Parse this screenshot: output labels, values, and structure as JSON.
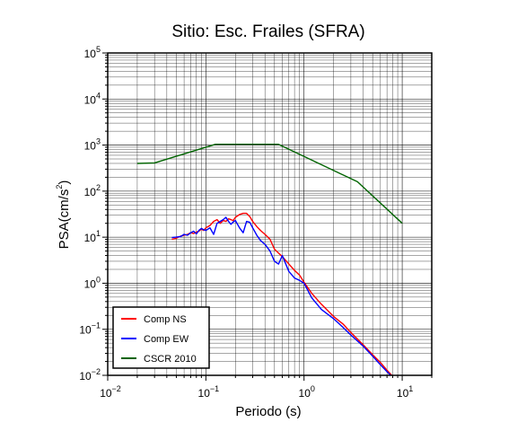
{
  "chart_data": {
    "type": "line",
    "title": "Sitio: Esc. Frailes (SFRA)",
    "xlabel": "Periodo (s)",
    "ylabel_base": "PSA(cm/s",
    "ylabel_sup": "2",
    "ylabel_close": ")",
    "xscale": "log",
    "yscale": "log",
    "xlim": [
      0.01,
      20
    ],
    "ylim": [
      0.01,
      100000
    ],
    "grid": true,
    "legend_position": "bottom-left",
    "x_ticks": [
      {
        "value": 0.01,
        "base": "10",
        "exp": "−2"
      },
      {
        "value": 0.1,
        "base": "10",
        "exp": "−1"
      },
      {
        "value": 1,
        "base": "10",
        "exp": "0"
      },
      {
        "value": 10,
        "base": "10",
        "exp": "1"
      }
    ],
    "y_ticks": [
      {
        "value": 0.01,
        "base": "10",
        "exp": "−2"
      },
      {
        "value": 0.1,
        "base": "10",
        "exp": "−1"
      },
      {
        "value": 1,
        "base": "10",
        "exp": "0"
      },
      {
        "value": 10,
        "base": "10",
        "exp": "1"
      },
      {
        "value": 100,
        "base": "10",
        "exp": "2"
      },
      {
        "value": 1000,
        "base": "10",
        "exp": "3"
      },
      {
        "value": 10000,
        "base": "10",
        "exp": "4"
      },
      {
        "value": 100000,
        "base": "10",
        "exp": "5"
      }
    ],
    "series": [
      {
        "name": "Comp NS",
        "color": "#ff0000",
        "x": [
          0.045,
          0.05,
          0.055,
          0.06,
          0.065,
          0.07,
          0.075,
          0.08,
          0.085,
          0.09,
          0.095,
          0.1,
          0.11,
          0.12,
          0.13,
          0.14,
          0.15,
          0.16,
          0.17,
          0.18,
          0.19,
          0.2,
          0.22,
          0.24,
          0.26,
          0.28,
          0.3,
          0.33,
          0.36,
          0.4,
          0.45,
          0.5,
          0.55,
          0.6,
          0.7,
          0.8,
          0.9,
          1.0,
          1.2,
          1.5,
          2.0,
          2.5,
          3.0,
          4.0,
          5.0,
          6.0,
          7.0,
          8.0
        ],
        "y": [
          9.0,
          9.5,
          10.5,
          11.0,
          11.5,
          12.5,
          12.0,
          13.0,
          13.5,
          15.0,
          14.0,
          16.0,
          18.0,
          22.0,
          24.0,
          20.0,
          23.0,
          22.0,
          25.0,
          24.0,
          23.0,
          27.0,
          31.0,
          33.0,
          33.0,
          28.0,
          22.0,
          17.0,
          14.0,
          11.5,
          9.0,
          5.5,
          4.5,
          3.8,
          2.6,
          1.9,
          1.5,
          1.05,
          0.6,
          0.35,
          0.19,
          0.13,
          0.085,
          0.046,
          0.028,
          0.019,
          0.013,
          0.0095
        ]
      },
      {
        "name": "Comp EW",
        "color": "#0000ff",
        "x": [
          0.045,
          0.05,
          0.055,
          0.06,
          0.065,
          0.07,
          0.075,
          0.08,
          0.085,
          0.09,
          0.095,
          0.1,
          0.11,
          0.12,
          0.13,
          0.14,
          0.15,
          0.16,
          0.17,
          0.18,
          0.19,
          0.2,
          0.22,
          0.24,
          0.26,
          0.28,
          0.3,
          0.33,
          0.36,
          0.4,
          0.45,
          0.5,
          0.55,
          0.6,
          0.7,
          0.8,
          0.9,
          1.0,
          1.2,
          1.5,
          2.0,
          2.5,
          3.0,
          4.0,
          5.0,
          6.0,
          7.0,
          8.0
        ],
        "y": [
          9.8,
          10.0,
          10.3,
          11.5,
          11.0,
          12.5,
          13.5,
          11.8,
          14.0,
          15.5,
          14.5,
          14.0,
          16.0,
          11.5,
          20.0,
          22.0,
          24.0,
          27.0,
          22.0,
          19.0,
          21.5,
          23.0,
          16.0,
          12.5,
          22.0,
          21.0,
          16.0,
          11.0,
          8.5,
          7.0,
          5.0,
          3.0,
          2.6,
          4.0,
          1.8,
          1.3,
          1.15,
          1.0,
          0.48,
          0.27,
          0.17,
          0.11,
          0.075,
          0.043,
          0.026,
          0.017,
          0.012,
          0.009
        ]
      },
      {
        "name": "CSCR 2010",
        "color": "#006400",
        "x": [
          0.02,
          0.03,
          0.125,
          0.55,
          3.5,
          10.0
        ],
        "y": [
          400,
          410,
          1040,
          1040,
          160,
          20
        ]
      }
    ]
  }
}
